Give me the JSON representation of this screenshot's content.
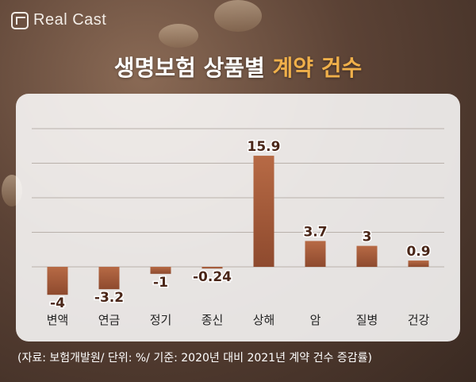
{
  "brand": {
    "name": "Real Cast",
    "logo_icon": "realcast-logo-icon"
  },
  "title": {
    "main": "생명보험 상품별 ",
    "highlight": "계약 건수"
  },
  "source": "(자료: 보험개발원/ 단위: %/ 기준: 2020년 대비 2021년 계약 건수 증감률)",
  "colors": {
    "bar": "#a35a3a",
    "highlight": "#f0b04a"
  },
  "chart_data": {
    "type": "bar",
    "categories": [
      "변액",
      "연금",
      "정기",
      "종신",
      "상해",
      "암",
      "질병",
      "건강"
    ],
    "values": [
      -4,
      -3.2,
      -1,
      -0.24,
      15.9,
      3.7,
      3,
      0.9
    ],
    "value_labels": [
      "-4",
      "-3.2",
      "-1",
      "-0.24",
      "15.9",
      "3.7",
      "3",
      "0.9"
    ],
    "ylim": [
      -5,
      16
    ],
    "grid": true
  }
}
